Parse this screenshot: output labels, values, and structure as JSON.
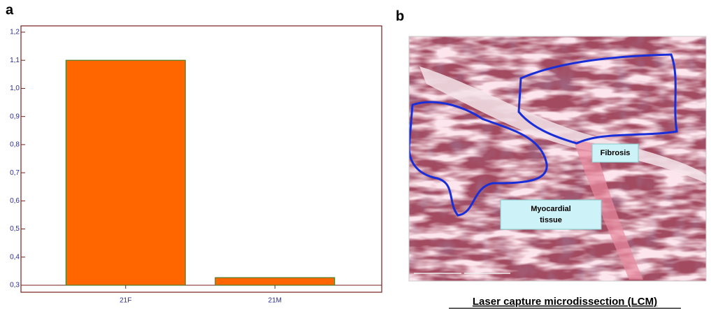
{
  "chart_data": {
    "type": "bar",
    "categories": [
      "21F",
      "21M"
    ],
    "values": [
      1.1,
      0.327
    ],
    "color": "#ff6600",
    "edge_color": "#4a7f2a",
    "ylim": [
      0.3,
      1.2
    ],
    "yticks": [
      {
        "value": 0.3,
        "label": "0,3"
      },
      {
        "value": 0.4,
        "label": "0,4"
      },
      {
        "value": 0.5,
        "label": "0,5"
      },
      {
        "value": 0.6,
        "label": "0,6"
      },
      {
        "value": 0.7,
        "label": "0,7"
      },
      {
        "value": 0.8,
        "label": "0,8"
      },
      {
        "value": 0.9,
        "label": "0,9"
      },
      {
        "value": 1.0,
        "label": "1,0"
      },
      {
        "value": 1.1,
        "label": "1,1"
      },
      {
        "value": 1.2,
        "label": "1,2"
      }
    ],
    "grid": false
  },
  "panels": [
    "a",
    "b"
  ],
  "micrograph": {
    "fibrosis": "Fibrosis",
    "tissue": [
      "Myocardial",
      "tissue"
    ],
    "caption": "Laser capture microdissection (LCM)"
  }
}
